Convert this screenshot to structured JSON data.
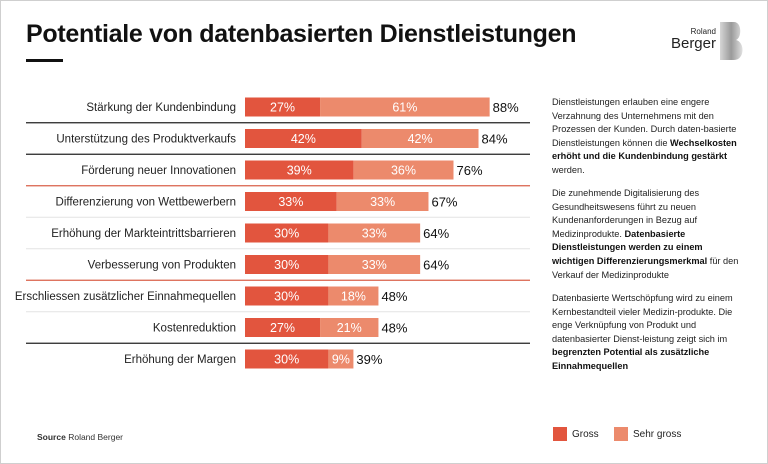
{
  "title": "Potentiale von datenbasierten Dienstleistungen",
  "logo": {
    "top": "Roland",
    "bottom": "Berger"
  },
  "colors": {
    "gross": "#e2553e",
    "sehr_gross": "#ec8a6c",
    "divider_black": "#222222",
    "divider_red": "#d9614a",
    "divider_light": "#e4e4e4"
  },
  "chart_data": {
    "type": "bar",
    "orientation": "horizontal-stacked",
    "title": "Potentiale von datenbasierten Dienstleistungen",
    "categories": [
      "Stärkung der Kundenbindung",
      "Unterstützung des Produktverkaufs",
      "Förderung neuer Innovationen",
      "Differenzierung von Wettbewerbern",
      "Erhöhung der Markteintrittsbarrieren",
      "Verbesserung von Produkten",
      "Erschliessen zusätzlicher Einnahmequellen",
      "Kostenreduktion",
      "Erhöhung der Margen"
    ],
    "series": [
      {
        "name": "Gross",
        "values": [
          27,
          42,
          39,
          33,
          30,
          30,
          30,
          27,
          30
        ]
      },
      {
        "name": "Sehr gross",
        "values": [
          61,
          42,
          36,
          33,
          33,
          33,
          18,
          21,
          9
        ]
      }
    ],
    "totals": [
      88,
      84,
      76,
      67,
      64,
      64,
      48,
      48,
      39
    ],
    "value_suffix": "%",
    "dividers_after": [
      "black",
      "black",
      "red",
      "light",
      "light",
      "red",
      "light",
      "black"
    ],
    "legend": {
      "position": "bottom-right",
      "entries": [
        "Gross",
        "Sehr gross"
      ]
    },
    "xlabel": "",
    "ylabel": ""
  },
  "notes": [
    {
      "parts": [
        {
          "t": "Dienstleistungen erlauben eine engere Verzahnung des Unternehmens mit den Prozessen der Kunden. Durch daten-basierte Dienstleistungen können die ",
          "b": false
        },
        {
          "t": "Wechselkosten erhöht und die Kundenbindung gestärkt",
          "b": true
        },
        {
          "t": " werden.",
          "b": false
        }
      ]
    },
    {
      "parts": [
        {
          "t": "Die zunehmende Digitalisierung des Gesundheitswesens führt zu neuen Kundenanforderungen in Bezug auf Medizinprodukte. ",
          "b": false
        },
        {
          "t": "Datenbasierte Dienstleistungen werden zu einem wichtigen Differenzierungsmerkmal",
          "b": true
        },
        {
          "t": " für den Verkauf der Medizinprodukte",
          "b": false
        }
      ]
    },
    {
      "parts": [
        {
          "t": "Datenbasierte Wertschöpfung wird zu einem Kernbestandteil vieler Medizin-produkte. Die enge Verknüpfung von Produkt und datenbasierter Dienst-leistung zeigt sich im ",
          "b": false
        },
        {
          "t": "begrenzten Potential als zusätzliche Einnahmequellen",
          "b": true
        }
      ]
    }
  ],
  "source": {
    "label": "Source",
    "text": "Roland Berger"
  },
  "legend": {
    "gross": "Gross",
    "sehr_gross": "Sehr gross"
  }
}
